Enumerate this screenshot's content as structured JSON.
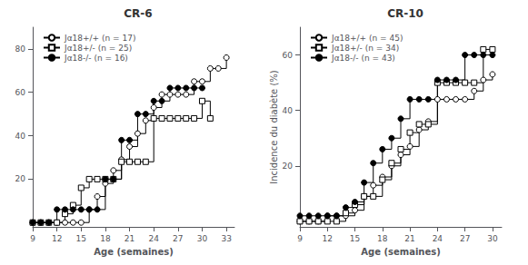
{
  "chart_data": [
    {
      "type": "line",
      "title": "CR-6",
      "xlabel": "Age (semaines)",
      "xlim": [
        9,
        34
      ],
      "ylim": [
        -2,
        90
      ],
      "xticks": [
        9,
        12,
        15,
        18,
        21,
        24,
        27,
        30,
        33
      ],
      "yticks": [
        20,
        40,
        60,
        80
      ],
      "grid": false,
      "legend": "upper left",
      "line_style": "step",
      "series": [
        {
          "name": "Jα18+/+ (n = 17)",
          "color": "#000000",
          "marker": "open_circle",
          "x": [
            9,
            10,
            11,
            12,
            13,
            14,
            15,
            16,
            17,
            18,
            19,
            20,
            21,
            22,
            23,
            24,
            25,
            26,
            27,
            28,
            29,
            30,
            31,
            32,
            33
          ],
          "values": [
            0,
            0,
            0,
            0,
            0,
            0,
            0,
            6,
            12,
            18,
            24,
            29,
            35,
            41,
            47,
            53,
            59,
            59,
            59,
            59,
            65,
            65,
            71,
            71,
            76
          ]
        },
        {
          "name": "Jα18+/- (n = 25)",
          "color": "#000000",
          "marker": "open_square",
          "x": [
            9,
            10,
            11,
            12,
            13,
            14,
            15,
            16,
            17,
            18,
            19,
            20,
            21,
            22,
            23,
            24,
            25,
            26,
            27,
            28,
            29,
            30,
            31
          ],
          "values": [
            0,
            0,
            0,
            0,
            4,
            8,
            16,
            20,
            20,
            20,
            20,
            28,
            28,
            28,
            28,
            48,
            48,
            48,
            48,
            48,
            48,
            56,
            48
          ]
        },
        {
          "name": "Jα18-/- (n = 16)",
          "color": "#000000",
          "marker": "filled_circle",
          "x": [
            9,
            10,
            11,
            12,
            13,
            14,
            15,
            16,
            17,
            18,
            19,
            20,
            21,
            22,
            23,
            24,
            25,
            26,
            27,
            28,
            29,
            30
          ],
          "values": [
            0,
            0,
            0,
            6,
            6,
            6,
            6,
            6,
            6,
            20,
            20,
            38,
            38,
            50,
            50,
            56,
            56,
            62,
            62,
            62,
            62,
            62
          ]
        }
      ]
    },
    {
      "type": "line",
      "title": "CR-10",
      "xlabel": "Age (semaines)",
      "ylabel": "Incidence du diabète (%)",
      "xlim": [
        9,
        31
      ],
      "ylim": [
        -2,
        70
      ],
      "xticks": [
        9,
        12,
        15,
        18,
        21,
        24,
        27,
        30
      ],
      "yticks": [
        20,
        40,
        60
      ],
      "grid": false,
      "legend": "upper left",
      "line_style": "step",
      "series": [
        {
          "name": "Jα18+/+ (n = 45)",
          "color": "#000000",
          "marker": "open_circle",
          "x": [
            9,
            10,
            11,
            12,
            13,
            14,
            15,
            16,
            17,
            18,
            19,
            20,
            21,
            22,
            23,
            24,
            25,
            26,
            27,
            28,
            29,
            30
          ],
          "values": [
            0,
            0,
            0,
            2,
            2,
            2,
            4,
            9,
            13,
            16,
            20,
            24,
            27,
            33,
            36,
            44,
            44,
            44,
            44,
            47,
            51,
            53
          ]
        },
        {
          "name": "Jα18+/- (n = 34)",
          "color": "#000000",
          "marker": "open_square",
          "x": [
            9,
            10,
            11,
            12,
            13,
            14,
            15,
            16,
            17,
            18,
            19,
            20,
            21,
            22,
            23,
            24,
            25,
            26,
            27,
            28,
            29,
            30
          ],
          "values": [
            0,
            0,
            0,
            0,
            0,
            3,
            6,
            9,
            9,
            15,
            21,
            26,
            32,
            35,
            35,
            50,
            50,
            50,
            50,
            50,
            62,
            62
          ]
        },
        {
          "name": "Jα18-/- (n = 43)",
          "color": "#000000",
          "marker": "filled_circle",
          "x": [
            9,
            10,
            11,
            12,
            13,
            14,
            15,
            16,
            17,
            18,
            19,
            20,
            21,
            22,
            23,
            24,
            25,
            26,
            27,
            28,
            29,
            30
          ],
          "values": [
            2,
            2,
            2,
            2,
            2,
            5,
            7,
            14,
            21,
            26,
            30,
            37,
            44,
            44,
            44,
            51,
            51,
            51,
            60,
            60,
            60,
            60
          ]
        }
      ]
    }
  ]
}
